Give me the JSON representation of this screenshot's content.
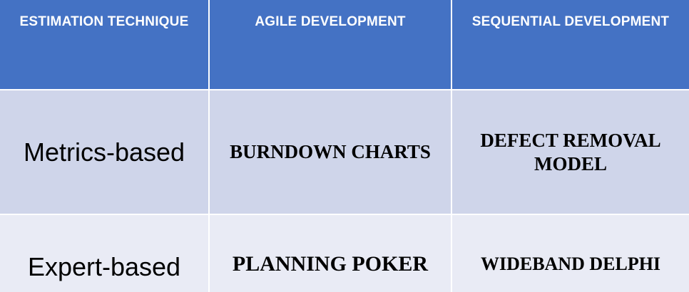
{
  "table": {
    "headers": [
      "ESTIMATION TECHNIQUE",
      "AGILE DEVELOPMENT",
      "SEQUENTIAL DEVELOPMENT"
    ],
    "rows": [
      {
        "technique": "Metrics-based",
        "agile": "BURNDOWN CHARTS",
        "sequential_line1": "DEFECT REMOVAL",
        "sequential_line2": "MODEL"
      },
      {
        "technique": "Expert-based",
        "agile": "PLANNING POKER",
        "sequential_line1": "WIDEBAND DELPHI"
      }
    ]
  },
  "colors": {
    "header_bg": "#4472c4",
    "row1_bg": "#cfd5ea",
    "row2_bg": "#e9ebf5",
    "header_text": "#ffffff"
  }
}
